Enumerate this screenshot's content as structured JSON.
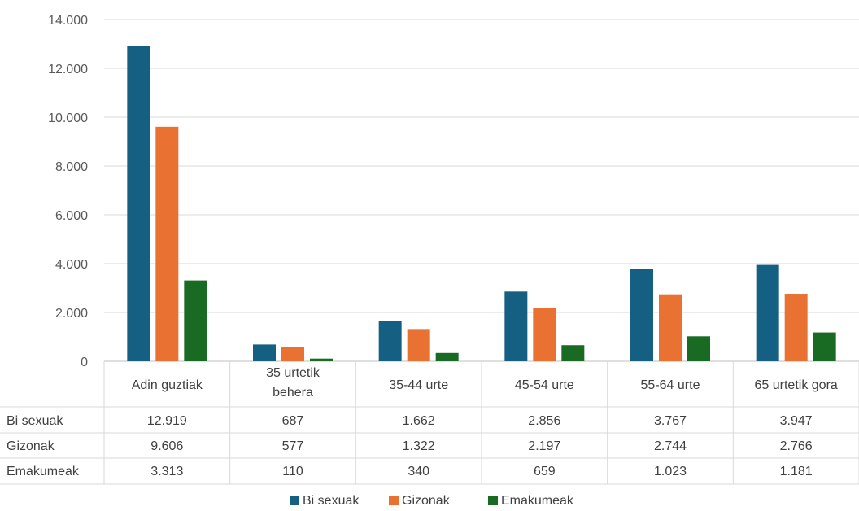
{
  "chart_data": {
    "type": "bar",
    "categories": [
      "Adin guztiak",
      "35 urtetik behera",
      "35-44 urte",
      "45-54 urte",
      "55-64 urte",
      "65 urtetik gora"
    ],
    "category_lines": [
      [
        "Adin guztiak"
      ],
      [
        "35 urtetik",
        "behera"
      ],
      [
        "35-44 urte"
      ],
      [
        "45-54 urte"
      ],
      [
        "55-64 urte"
      ],
      [
        "65 urtetik gora"
      ]
    ],
    "series": [
      {
        "name": "Bi sexuak",
        "color": "#156082",
        "values": [
          12919,
          687,
          1662,
          2856,
          3767,
          3947
        ],
        "labels": [
          "12.919",
          "687",
          "1.662",
          "2.856",
          "3.767",
          "3.947"
        ]
      },
      {
        "name": "Gizonak",
        "color": "#E97132",
        "values": [
          9606,
          577,
          1322,
          2197,
          2744,
          2766
        ],
        "labels": [
          "9.606",
          "577",
          "1.322",
          "2.197",
          "2.744",
          "2.766"
        ]
      },
      {
        "name": "Emakumeak",
        "color": "#196B24",
        "values": [
          3313,
          110,
          340,
          659,
          1023,
          1181
        ],
        "labels": [
          "3.313",
          "110",
          "340",
          "659",
          "1.023",
          "1.181"
        ]
      }
    ],
    "ylim": [
      0,
      14000
    ],
    "yticks": [
      0,
      2000,
      4000,
      6000,
      8000,
      10000,
      12000,
      14000
    ],
    "ytick_labels": [
      "0",
      "2.000",
      "4.000",
      "6.000",
      "8.000",
      "10.000",
      "12.000",
      "14.000"
    ],
    "grid": true,
    "data_table": true,
    "legend_position": "bottom"
  }
}
